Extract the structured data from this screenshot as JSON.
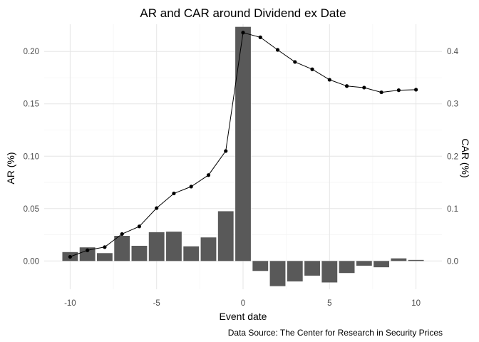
{
  "chart_data": {
    "type": "bar",
    "title": "AR and CAR around Dividend ex Date",
    "xlabel": "Event date",
    "ylabel": "AR (%)",
    "y2label": "CAR (%)",
    "caption": "Data Source: The Center for Research in Security Prices",
    "x": [
      -10,
      -9,
      -8,
      -7,
      -6,
      -5,
      -4,
      -3,
      -2,
      -1,
      0,
      1,
      2,
      3,
      4,
      5,
      6,
      7,
      8,
      9,
      10
    ],
    "xlim": [
      -11.5,
      11.5
    ],
    "ylim": [
      -0.027,
      0.226
    ],
    "y2lim": [
      -0.054,
      0.452
    ],
    "x_ticks": [
      "-10",
      "-5",
      "0",
      "5",
      "10"
    ],
    "x_tick_values": [
      -10,
      -5,
      0,
      5,
      10
    ],
    "y_ticks": [
      "0.00",
      "0.05",
      "0.10",
      "0.15",
      "0.20"
    ],
    "y_tick_values": [
      0,
      0.05,
      0.1,
      0.15,
      0.2
    ],
    "y2_ticks": [
      "0.0",
      "0.1",
      "0.2",
      "0.3",
      "0.4"
    ],
    "y2_tick_values": [
      0,
      0.1,
      0.2,
      0.3,
      0.4
    ],
    "grid": true,
    "series": [
      {
        "type": "bar",
        "axis": "left",
        "color": "#595959",
        "values": [
          0.0085,
          0.013,
          0.0075,
          0.024,
          0.0145,
          0.0275,
          0.028,
          0.014,
          0.0225,
          0.0475,
          0.2235,
          -0.0095,
          -0.024,
          -0.0195,
          -0.014,
          -0.0205,
          -0.0115,
          -0.0045,
          -0.006,
          0.0025,
          0.001
        ]
      },
      {
        "type": "line",
        "axis": "right",
        "color": "#000000",
        "values": [
          0.008,
          0.0205,
          0.0265,
          0.0515,
          0.066,
          0.101,
          0.129,
          0.142,
          0.164,
          0.21,
          0.436,
          0.427,
          0.403,
          0.38,
          0.366,
          0.346,
          0.334,
          0.331,
          0.322,
          0.326,
          0.327
        ]
      }
    ]
  }
}
